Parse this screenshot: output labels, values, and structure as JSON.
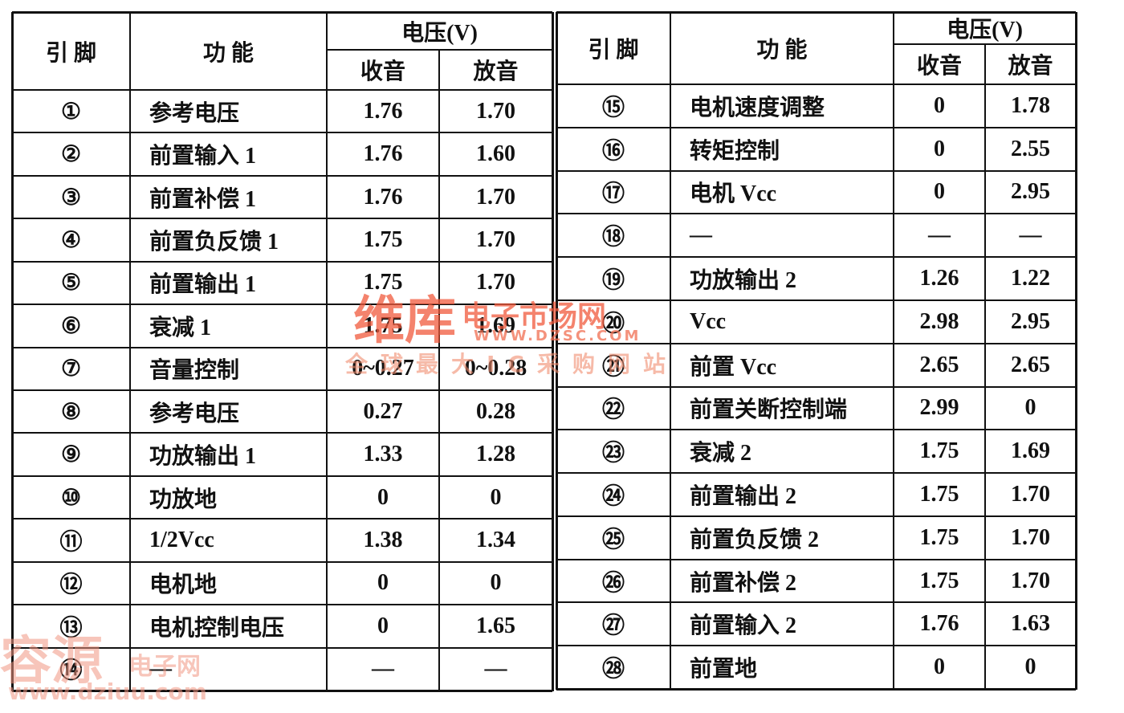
{
  "tables": [
    {
      "header": {
        "pin": "引  脚",
        "function": "功  能",
        "voltage": "电压(V)",
        "radio": "收音",
        "playback": "放音"
      },
      "rows": [
        [
          "①",
          "参考电压",
          "1.76",
          "1.70"
        ],
        [
          "②",
          "前置输入 1",
          "1.76",
          "1.60"
        ],
        [
          "③",
          "前置补偿 1",
          "1.76",
          "1.70"
        ],
        [
          "④",
          "前置负反馈 1",
          "1.75",
          "1.70"
        ],
        [
          "⑤",
          "前置输出 1",
          "1.75",
          "1.70"
        ],
        [
          "⑥",
          "衰减 1",
          "1.75",
          "1.69"
        ],
        [
          "⑦",
          "音量控制",
          "0~0.27",
          "0~0.28"
        ],
        [
          "⑧",
          "参考电压",
          "0.27",
          "0.28"
        ],
        [
          "⑨",
          "功放输出 1",
          "1.33",
          "1.28"
        ],
        [
          "⑩",
          "功放地",
          "0",
          "0"
        ],
        [
          "⑪",
          "1/2Vcc",
          "1.38",
          "1.34"
        ],
        [
          "⑫",
          "电机地",
          "0",
          "0"
        ],
        [
          "⑬",
          "电机控制电压",
          "0",
          "1.65"
        ],
        [
          "⑭",
          "—",
          "—",
          "—"
        ]
      ]
    },
    {
      "header": {
        "pin": "引  脚",
        "function": "功  能",
        "voltage": "电压(V)",
        "radio": "收音",
        "playback": "放音"
      },
      "rows": [
        [
          "⑮",
          "电机速度调整",
          "0",
          "1.78"
        ],
        [
          "⑯",
          "转矩控制",
          "0",
          "2.55"
        ],
        [
          "⑰",
          "电机 Vcc",
          "0",
          "2.95"
        ],
        [
          "⑱",
          "—",
          "—",
          "—"
        ],
        [
          "⑲",
          "功放输出 2",
          "1.26",
          "1.22"
        ],
        [
          "⑳",
          "Vcc",
          "2.98",
          "2.95"
        ],
        [
          "㉑",
          "前置 Vcc",
          "2.65",
          "2.65"
        ],
        [
          "㉒",
          "前置关断控制端",
          "2.99",
          "0"
        ],
        [
          "㉓",
          "衰减 2",
          "1.75",
          "1.69"
        ],
        [
          "㉔",
          "前置输出 2",
          "1.75",
          "1.70"
        ],
        [
          "㉕",
          "前置负反馈 2",
          "1.75",
          "1.70"
        ],
        [
          "㉖",
          "前置补偿 2",
          "1.75",
          "1.70"
        ],
        [
          "㉗",
          "前置输入 2",
          "1.76",
          "1.63"
        ],
        [
          "㉘",
          "前置地",
          "0",
          "0"
        ]
      ]
    }
  ],
  "watermarks": {
    "brand": "维库",
    "site": "电子市场网",
    "url": "WWW.DZSC.COM",
    "slogan": "全球最大IC采购网站",
    "brand2": "容源",
    "site2": "电子网",
    "url2": "www.dziuu.com"
  }
}
